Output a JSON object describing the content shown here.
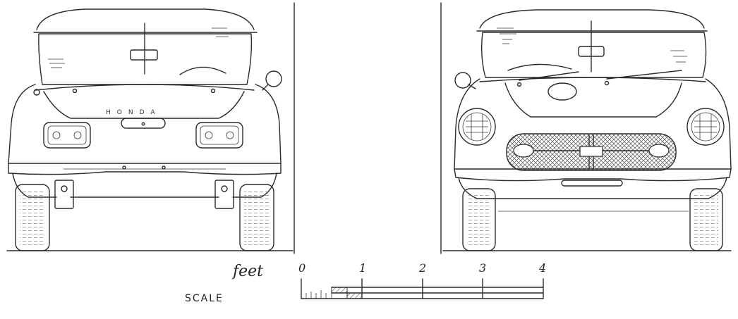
{
  "rear_view": {
    "badge_text": "HONDA"
  },
  "scale": {
    "unit_label": "feet",
    "title": "SCALE",
    "tick_labels": [
      "0",
      "1",
      "2",
      "3",
      "4"
    ]
  },
  "colors": {
    "ink": "#2a2a2a",
    "paper": "#ffffff"
  }
}
